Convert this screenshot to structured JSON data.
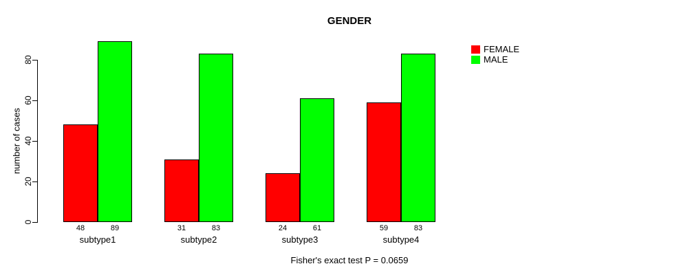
{
  "title": "GENDER",
  "caption": "Fisher's exact test P = 0.0659",
  "y_axis": {
    "label": "number of cases",
    "ticks": [
      "0",
      "20",
      "40",
      "60",
      "80"
    ]
  },
  "legend": {
    "items": [
      {
        "label": "FEMALE",
        "color": "#ff0000"
      },
      {
        "label": "MALE",
        "color": "#00ff00"
      }
    ]
  },
  "chart_data": {
    "type": "bar",
    "title": "GENDER",
    "categories": [
      "subtype1",
      "subtype2",
      "subtype3",
      "subtype4"
    ],
    "series": [
      {
        "name": "FEMALE",
        "color": "#ff0000",
        "values": [
          48,
          31,
          24,
          59
        ]
      },
      {
        "name": "MALE",
        "color": "#00ff00",
        "values": [
          89,
          83,
          61,
          83
        ]
      }
    ],
    "bar_value_labels": [
      [
        48,
        89
      ],
      [
        31,
        83
      ],
      [
        24,
        61
      ],
      [
        59,
        83
      ]
    ],
    "xlabel": "",
    "ylabel": "number of cases",
    "yticks": [
      0,
      20,
      40,
      60,
      80
    ],
    "ylim": [
      0,
      89
    ],
    "grid": false,
    "legend_position": "top-right-outside",
    "annotation": "Fisher's exact test P = 0.0659"
  }
}
